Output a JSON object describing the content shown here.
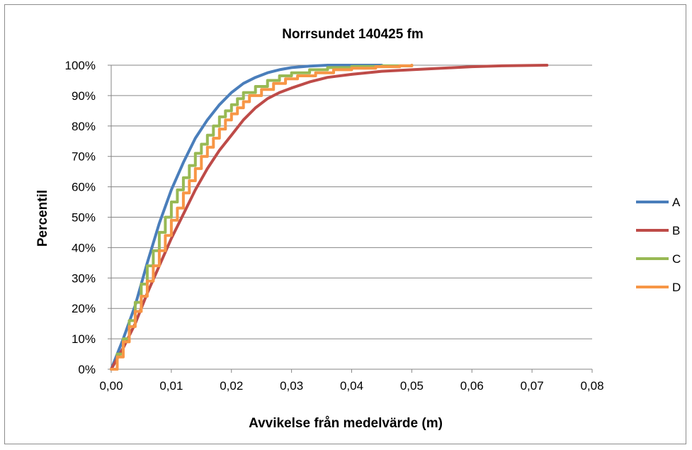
{
  "chart_data": {
    "type": "line",
    "title": "Norrsundet 140425 fm",
    "xlabel": "Avvikelse från medelvärde (m)",
    "ylabel": "Percentil",
    "xlim": [
      0,
      0.08
    ],
    "ylim": [
      0,
      100
    ],
    "x_ticks": [
      "0,00",
      "0,01",
      "0,02",
      "0,03",
      "0,04",
      "0,05",
      "0,06",
      "0,07",
      "0,08"
    ],
    "y_ticks": [
      "0%",
      "10%",
      "20%",
      "30%",
      "40%",
      "50%",
      "60%",
      "70%",
      "80%",
      "90%",
      "100%"
    ],
    "grid": "horizontal",
    "legend_position": "right",
    "series": [
      {
        "name": "A",
        "color": "#4a7ebb",
        "step": false,
        "points": [
          [
            0,
            0
          ],
          [
            0.002,
            10
          ],
          [
            0.004,
            21
          ],
          [
            0.006,
            35
          ],
          [
            0.008,
            48
          ],
          [
            0.01,
            59
          ],
          [
            0.012,
            68
          ],
          [
            0.014,
            76
          ],
          [
            0.016,
            82
          ],
          [
            0.018,
            87
          ],
          [
            0.02,
            91
          ],
          [
            0.022,
            94
          ],
          [
            0.024,
            96
          ],
          [
            0.026,
            97.5
          ],
          [
            0.028,
            98.5
          ],
          [
            0.03,
            99.2
          ],
          [
            0.033,
            99.7
          ],
          [
            0.036,
            100
          ],
          [
            0.045,
            100
          ]
        ]
      },
      {
        "name": "B",
        "color": "#be4b48",
        "step": false,
        "points": [
          [
            0,
            0
          ],
          [
            0.002,
            7
          ],
          [
            0.004,
            15
          ],
          [
            0.006,
            25
          ],
          [
            0.008,
            34
          ],
          [
            0.01,
            43
          ],
          [
            0.012,
            51
          ],
          [
            0.014,
            59
          ],
          [
            0.016,
            66
          ],
          [
            0.018,
            72
          ],
          [
            0.02,
            77
          ],
          [
            0.022,
            82
          ],
          [
            0.024,
            86
          ],
          [
            0.026,
            89
          ],
          [
            0.028,
            91
          ],
          [
            0.03,
            92.5
          ],
          [
            0.033,
            94.5
          ],
          [
            0.036,
            96
          ],
          [
            0.04,
            97
          ],
          [
            0.045,
            98
          ],
          [
            0.05,
            98.5
          ],
          [
            0.055,
            99
          ],
          [
            0.06,
            99.5
          ],
          [
            0.065,
            99.8
          ],
          [
            0.0725,
            100
          ]
        ]
      },
      {
        "name": "C",
        "color": "#98b954",
        "step": true,
        "points": [
          [
            0,
            0
          ],
          [
            0.001,
            5
          ],
          [
            0.002,
            10
          ],
          [
            0.003,
            16
          ],
          [
            0.004,
            22
          ],
          [
            0.005,
            28
          ],
          [
            0.006,
            34
          ],
          [
            0.007,
            39
          ],
          [
            0.008,
            45
          ],
          [
            0.009,
            50
          ],
          [
            0.01,
            55
          ],
          [
            0.011,
            59
          ],
          [
            0.012,
            63
          ],
          [
            0.013,
            67
          ],
          [
            0.014,
            71
          ],
          [
            0.015,
            74
          ],
          [
            0.016,
            77
          ],
          [
            0.017,
            80
          ],
          [
            0.018,
            83
          ],
          [
            0.019,
            85
          ],
          [
            0.02,
            87
          ],
          [
            0.021,
            89
          ],
          [
            0.022,
            91
          ],
          [
            0.024,
            93
          ],
          [
            0.026,
            95
          ],
          [
            0.028,
            96.5
          ],
          [
            0.03,
            97.5
          ],
          [
            0.033,
            98.5
          ],
          [
            0.036,
            99.2
          ],
          [
            0.04,
            99.6
          ],
          [
            0.045,
            99.8
          ],
          [
            0.05,
            100
          ]
        ]
      },
      {
        "name": "D",
        "color": "#f79646",
        "step": true,
        "points": [
          [
            0,
            0
          ],
          [
            0.001,
            4
          ],
          [
            0.002,
            9
          ],
          [
            0.003,
            14
          ],
          [
            0.004,
            19
          ],
          [
            0.005,
            24
          ],
          [
            0.006,
            29
          ],
          [
            0.007,
            34
          ],
          [
            0.008,
            39
          ],
          [
            0.009,
            44
          ],
          [
            0.01,
            49
          ],
          [
            0.011,
            53
          ],
          [
            0.012,
            58
          ],
          [
            0.013,
            62
          ],
          [
            0.014,
            66
          ],
          [
            0.015,
            70
          ],
          [
            0.016,
            73
          ],
          [
            0.017,
            76
          ],
          [
            0.018,
            79
          ],
          [
            0.019,
            82
          ],
          [
            0.02,
            84
          ],
          [
            0.021,
            86
          ],
          [
            0.022,
            88
          ],
          [
            0.023,
            90
          ],
          [
            0.025,
            92
          ],
          [
            0.027,
            94
          ],
          [
            0.029,
            95.5
          ],
          [
            0.031,
            96.5
          ],
          [
            0.034,
            97.5
          ],
          [
            0.037,
            98.5
          ],
          [
            0.04,
            99
          ],
          [
            0.044,
            99.5
          ],
          [
            0.048,
            99.8
          ],
          [
            0.05,
            100
          ]
        ]
      }
    ]
  }
}
